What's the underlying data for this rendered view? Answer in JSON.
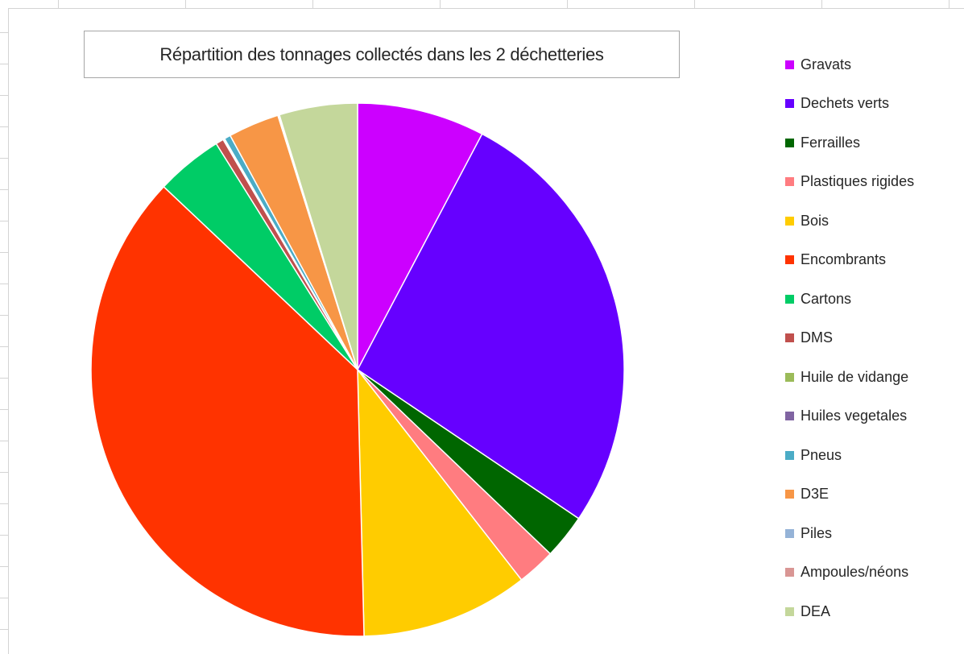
{
  "chart_data": {
    "type": "pie",
    "title": "Répartition des tonnages collectés dans les 2 déchetteries",
    "legend_position": "right",
    "start_angle": "top, clockwise",
    "categories": [
      "Gravats",
      "Dechets verts",
      "Ferrailles",
      "Plastiques rigides",
      "Bois",
      "Encombrants",
      "Cartons",
      "DMS",
      "Huile de vidange",
      "Huiles vegetales",
      "Pneus",
      "D3E",
      "Piles",
      "Ampoules/néons",
      "DEA"
    ],
    "values": [
      8.0,
      27.6,
      2.8,
      2.4,
      10.5,
      38.7,
      4.2,
      0.5,
      0.05,
      0.05,
      0.4,
      3.2,
      0.05,
      0.05,
      4.9
    ],
    "colors": [
      "#cc00ff",
      "#6600ff",
      "#006600",
      "#ff7c80",
      "#ffcc00",
      "#ff3300",
      "#00cc66",
      "#c0504d",
      "#9bbb59",
      "#8064a2",
      "#4bacc6",
      "#f79646",
      "#95b3d7",
      "#d99694",
      "#c4d79b"
    ]
  }
}
